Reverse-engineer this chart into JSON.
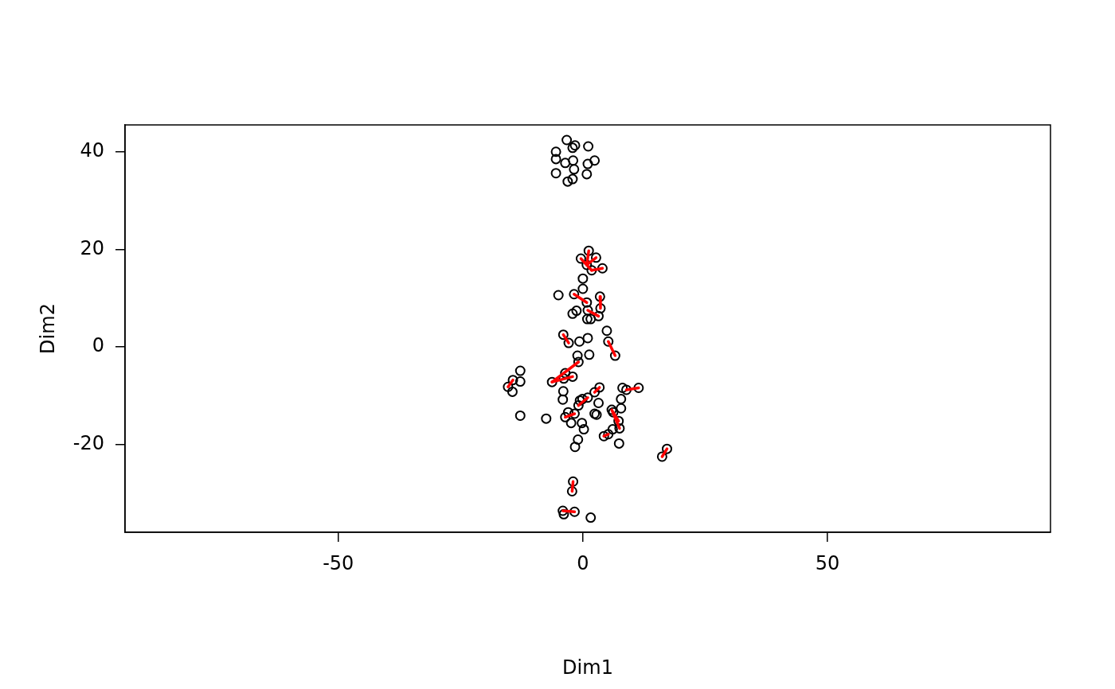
{
  "chart_data": {
    "type": "scatter",
    "xlabel": "Dim1",
    "ylabel": "Dim2",
    "xlim": [
      -93.6,
      95.6
    ],
    "ylim": [
      -38,
      45.5
    ],
    "xticks": [
      -50,
      0,
      50
    ],
    "yticks": [
      -20,
      0,
      20,
      40
    ],
    "grid": false,
    "legend": false,
    "marker": "circle",
    "series": [
      {
        "type": "scatter",
        "color": "#000000",
        "x": [
          -3.3,
          -5.5,
          -5.5,
          -2.1,
          -1.6,
          1.1,
          -3.6,
          -2.0,
          1.0,
          2.4,
          -1.8,
          -5.5,
          0.8,
          -2.1,
          -3.1,
          1.2,
          -0.4,
          2.7,
          0.8,
          1.8,
          4.0,
          0.0,
          0.0,
          -5.0,
          -1.8,
          3.5,
          0.8,
          3.6,
          -1.3,
          -2.1,
          1.0,
          3.2,
          0.9,
          1.6,
          4.9,
          -4.0,
          -2.9,
          -0.7,
          1.0,
          5.2,
          6.6,
          1.3,
          -1.1,
          -0.9,
          -12.8,
          -14.3,
          -12.8,
          -15.3,
          -14.4,
          -3.6,
          -2.1,
          -3.9,
          -6.3,
          -4.0,
          -4.1,
          3.4,
          2.4,
          8.1,
          8.9,
          11.4,
          1.0,
          -0.6,
          -0.1,
          -0.9,
          7.8,
          3.2,
          7.8,
          5.9,
          6.2,
          7.3,
          7.5,
          6.1,
          -3.0,
          -3.6,
          -2.4,
          -1.7,
          2.4,
          2.8,
          -12.8,
          -7.5,
          -0.2,
          0.2,
          -1.0,
          -1.6,
          4.3,
          5.2,
          7.4,
          17.2,
          16.2,
          -2.0,
          -2.2,
          -4.1,
          -3.9,
          -1.7,
          1.6
        ],
        "values": [
          42.4,
          40.0,
          38.5,
          40.8,
          41.3,
          41.1,
          37.7,
          38.2,
          37.5,
          38.2,
          36.4,
          35.6,
          35.4,
          34.4,
          33.9,
          19.7,
          18.1,
          18.3,
          16.8,
          15.7,
          16.1,
          14.0,
          11.9,
          10.6,
          10.8,
          10.3,
          9.1,
          7.9,
          7.4,
          6.8,
          7.5,
          6.3,
          5.7,
          5.7,
          3.3,
          2.5,
          0.8,
          1.1,
          1.8,
          1.1,
          -1.8,
          -1.6,
          -1.8,
          -3.1,
          -4.9,
          -6.8,
          -7.1,
          -8.2,
          -9.2,
          -5.4,
          -6.1,
          -6.5,
          -7.2,
          -9.1,
          -10.8,
          -8.3,
          -9.3,
          -8.4,
          -8.8,
          -8.4,
          -10.4,
          -11.0,
          -10.7,
          -12.0,
          -10.7,
          -11.5,
          -12.6,
          -12.9,
          -13.4,
          -15.2,
          -16.7,
          -16.9,
          -13.4,
          -14.4,
          -15.6,
          -13.7,
          -13.7,
          -13.9,
          -14.1,
          -14.7,
          -15.6,
          -16.9,
          -19.0,
          -20.5,
          -18.3,
          -17.9,
          -19.8,
          -20.9,
          -22.5,
          -27.6,
          -29.6,
          -33.6,
          -34.3,
          -33.8,
          -35.0
        ]
      },
      {
        "type": "line",
        "color": "#ff0000",
        "marker": "none",
        "x": [
          1.2,
          0.8
        ],
        "values": [
          19.7,
          16.8
        ]
      },
      {
        "type": "line",
        "color": "#ff0000",
        "marker": "none",
        "x": [
          -0.4,
          1.8
        ],
        "values": [
          18.1,
          15.7
        ]
      },
      {
        "type": "line",
        "color": "#ff0000",
        "marker": "none",
        "x": [
          1.8,
          4.0
        ],
        "values": [
          15.7,
          16.1
        ]
      },
      {
        "type": "line",
        "color": "#ff0000",
        "marker": "none",
        "x": [
          0.8,
          2.7
        ],
        "values": [
          16.8,
          18.3
        ]
      },
      {
        "type": "line",
        "color": "#ff0000",
        "marker": "none",
        "x": [
          -1.8,
          0.8
        ],
        "values": [
          10.8,
          9.1
        ]
      },
      {
        "type": "line",
        "color": "#ff0000",
        "marker": "none",
        "x": [
          3.5,
          3.6
        ],
        "values": [
          10.3,
          7.9
        ]
      },
      {
        "type": "line",
        "color": "#ff0000",
        "marker": "none",
        "x": [
          1.0,
          3.2
        ],
        "values": [
          7.5,
          6.3
        ]
      },
      {
        "type": "line",
        "color": "#ff0000",
        "marker": "none",
        "x": [
          -4.0,
          -2.9
        ],
        "values": [
          2.5,
          0.8
        ]
      },
      {
        "type": "line",
        "color": "#ff0000",
        "marker": "none",
        "x": [
          5.2,
          6.6
        ],
        "values": [
          1.1,
          -1.8
        ]
      },
      {
        "type": "line",
        "color": "#ff0000",
        "marker": "none",
        "x": [
          -0.9,
          -6.3
        ],
        "values": [
          -3.1,
          -7.2
        ]
      },
      {
        "type": "line",
        "color": "#ff0000",
        "marker": "none",
        "x": [
          -2.1,
          -6.3
        ],
        "values": [
          -6.1,
          -7.2
        ]
      },
      {
        "type": "line",
        "color": "#ff0000",
        "marker": "none",
        "x": [
          -14.3,
          -15.3
        ],
        "values": [
          -6.8,
          -8.2
        ]
      },
      {
        "type": "line",
        "color": "#ff0000",
        "marker": "none",
        "x": [
          3.4,
          2.4
        ],
        "values": [
          -8.3,
          -9.3
        ]
      },
      {
        "type": "line",
        "color": "#ff0000",
        "marker": "none",
        "x": [
          8.9,
          11.4
        ],
        "values": [
          -8.8,
          -8.4
        ]
      },
      {
        "type": "line",
        "color": "#ff0000",
        "marker": "none",
        "x": [
          1.0,
          -0.9
        ],
        "values": [
          -10.4,
          -12.0
        ]
      },
      {
        "type": "line",
        "color": "#ff0000",
        "marker": "none",
        "x": [
          5.9,
          7.5
        ],
        "values": [
          -12.9,
          -16.7
        ]
      },
      {
        "type": "line",
        "color": "#ff0000",
        "marker": "none",
        "x": [
          6.2,
          7.3
        ],
        "values": [
          -13.4,
          -15.2
        ]
      },
      {
        "type": "line",
        "color": "#ff0000",
        "marker": "none",
        "x": [
          -3.6,
          -1.7
        ],
        "values": [
          -14.4,
          -13.7
        ]
      },
      {
        "type": "line",
        "color": "#ff0000",
        "marker": "none",
        "x": [
          4.3,
          5.2
        ],
        "values": [
          -18.3,
          -17.9
        ]
      },
      {
        "type": "line",
        "color": "#ff0000",
        "marker": "none",
        "x": [
          17.2,
          16.2
        ],
        "values": [
          -20.9,
          -22.5
        ]
      },
      {
        "type": "line",
        "color": "#ff0000",
        "marker": "none",
        "x": [
          -2.0,
          -2.2
        ],
        "values": [
          -27.6,
          -29.6
        ]
      },
      {
        "type": "line",
        "color": "#ff0000",
        "marker": "none",
        "x": [
          -4.1,
          -1.7
        ],
        "values": [
          -33.6,
          -33.8
        ]
      }
    ]
  }
}
